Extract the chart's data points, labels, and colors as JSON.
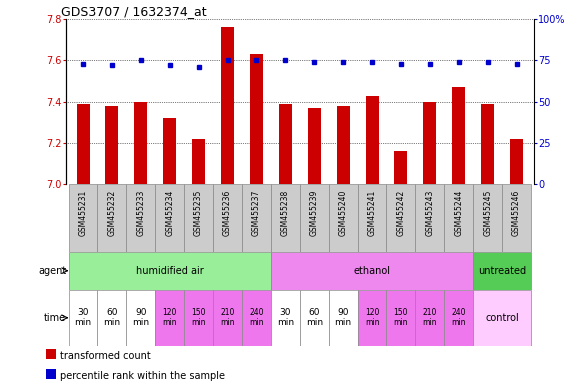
{
  "title": "GDS3707 / 1632374_at",
  "samples": [
    "GSM455231",
    "GSM455232",
    "GSM455233",
    "GSM455234",
    "GSM455235",
    "GSM455236",
    "GSM455237",
    "GSM455238",
    "GSM455239",
    "GSM455240",
    "GSM455241",
    "GSM455242",
    "GSM455243",
    "GSM455244",
    "GSM455245",
    "GSM455246"
  ],
  "bar_values": [
    7.39,
    7.38,
    7.4,
    7.32,
    7.22,
    7.76,
    7.63,
    7.39,
    7.37,
    7.38,
    7.43,
    7.16,
    7.4,
    7.47,
    7.39,
    7.22
  ],
  "dot_values": [
    73,
    72,
    75,
    72,
    71,
    75,
    75,
    75,
    74,
    74,
    74,
    73,
    73,
    74,
    74,
    73
  ],
  "ylim_left": [
    7.0,
    7.8
  ],
  "ylim_right": [
    0,
    100
  ],
  "yticks_left": [
    7.0,
    7.2,
    7.4,
    7.6,
    7.8
  ],
  "yticks_right": [
    0,
    25,
    50,
    75,
    100
  ],
  "bar_color": "#cc0000",
  "dot_color": "#0000cc",
  "bar_baseline": 7.0,
  "agent_groups": [
    {
      "label": "humidified air",
      "start": 0,
      "end": 7,
      "color": "#99ee99"
    },
    {
      "label": "ethanol",
      "start": 7,
      "end": 14,
      "color": "#ee88ee"
    },
    {
      "label": "untreated",
      "start": 14,
      "end": 16,
      "color": "#55cc55"
    }
  ],
  "time_values": [
    "30\nmin",
    "60\nmin",
    "90\nmin",
    "120\nmin",
    "150\nmin",
    "210\nmin",
    "240\nmin",
    "30\nmin",
    "60\nmin",
    "90\nmin",
    "120\nmin",
    "150\nmin",
    "210\nmin",
    "240\nmin"
  ],
  "time_white_indices": [
    0,
    1,
    2,
    7,
    8,
    9
  ],
  "time_pink_indices": [
    3,
    4,
    5,
    6,
    10,
    11,
    12,
    13
  ],
  "time_white_color": "#ffffff",
  "time_pink_color": "#ee77ee",
  "control_color": "#ffccff",
  "control_text": "control",
  "sample_box_color": "#cccccc",
  "agent_label": "agent",
  "time_label": "time",
  "legend_items": [
    {
      "color": "#cc0000",
      "label": "transformed count"
    },
    {
      "color": "#0000cc",
      "label": "percentile rank within the sample"
    }
  ]
}
